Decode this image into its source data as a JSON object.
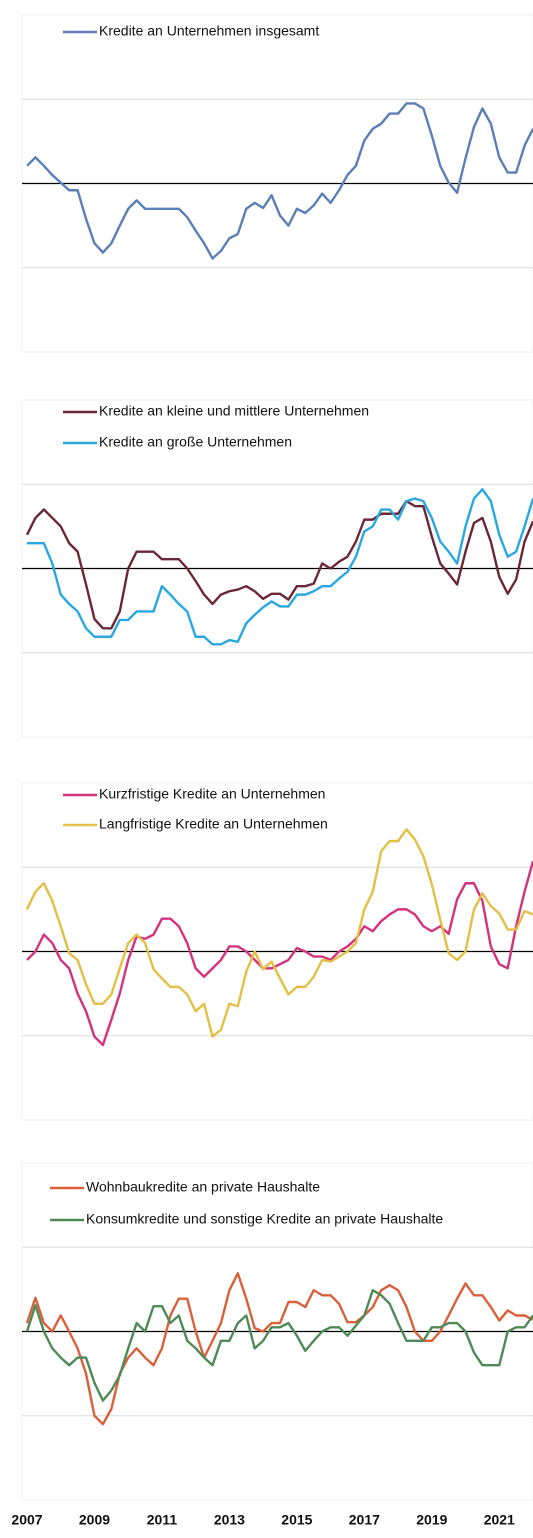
{
  "chart_data": [
    {
      "type": "line",
      "xlim": [
        2007,
        2022
      ],
      "ylim": [
        -2,
        2
      ],
      "yticks": [
        -1,
        0,
        1
      ],
      "grid": true,
      "x": [
        2007,
        2007.25,
        2007.5,
        2007.75,
        2008,
        2008.25,
        2008.5,
        2008.75,
        2009,
        2009.25,
        2009.5,
        2009.75,
        2010,
        2010.25,
        2010.5,
        2010.75,
        2011,
        2011.25,
        2011.5,
        2011.75,
        2012,
        2012.25,
        2012.5,
        2012.75,
        2013,
        2013.25,
        2013.5,
        2013.75,
        2014,
        2014.25,
        2014.5,
        2014.75,
        2015,
        2015.25,
        2015.5,
        2015.75,
        2016,
        2016.25,
        2016.5,
        2016.75,
        2017,
        2017.25,
        2017.5,
        2017.75,
        2018,
        2018.25,
        2018.5,
        2018.75,
        2019,
        2019.25,
        2019.5,
        2019.75,
        2020,
        2020.25,
        2020.5,
        2020.75,
        2021,
        2021.25,
        2021.5,
        2021.75,
        2022
      ],
      "series": [
        {
          "name": "Kredite an Unternehmen insgesamt",
          "color": "#5b7fb5",
          "values": [
            0.21,
            0.31,
            0.21,
            0.1,
            0.01,
            -0.08,
            -0.08,
            -0.42,
            -0.71,
            -0.82,
            -0.71,
            -0.5,
            -0.3,
            -0.2,
            -0.3,
            -0.3,
            -0.3,
            -0.3,
            -0.3,
            -0.4,
            -0.56,
            -0.71,
            -0.89,
            -0.8,
            -0.65,
            -0.6,
            -0.3,
            -0.23,
            -0.29,
            -0.14,
            -0.38,
            -0.5,
            -0.3,
            -0.35,
            -0.26,
            -0.12,
            -0.23,
            -0.08,
            0.1,
            0.21,
            0.51,
            0.65,
            0.71,
            0.83,
            0.83,
            0.95,
            0.95,
            0.89,
            0.57,
            0.21,
            0.01,
            -0.11,
            0.3,
            0.67,
            0.89,
            0.71,
            0.31,
            0.13,
            0.13,
            0.45,
            0.65
          ]
        }
      ]
    },
    {
      "type": "line",
      "xlim": [
        2007,
        2022
      ],
      "ylim": [
        -2,
        2
      ],
      "yticks": [
        -1,
        0,
        1
      ],
      "grid": true,
      "x": [
        2007,
        2007.25,
        2007.5,
        2007.75,
        2008,
        2008.25,
        2008.5,
        2008.75,
        2009,
        2009.25,
        2009.5,
        2009.75,
        2010,
        2010.25,
        2010.5,
        2010.75,
        2011,
        2011.25,
        2011.5,
        2011.75,
        2012,
        2012.25,
        2012.5,
        2012.75,
        2013,
        2013.25,
        2013.5,
        2013.75,
        2014,
        2014.25,
        2014.5,
        2014.75,
        2015,
        2015.25,
        2015.5,
        2015.75,
        2016,
        2016.25,
        2016.5,
        2016.75,
        2017,
        2017.25,
        2017.5,
        2017.75,
        2018,
        2018.25,
        2018.5,
        2018.75,
        2019,
        2019.25,
        2019.5,
        2019.75,
        2020,
        2020.25,
        2020.5,
        2020.75,
        2021,
        2021.25,
        2021.5,
        2021.75,
        2022
      ],
      "series": [
        {
          "name": "Kredite an kleine und mittlere Unternehmen",
          "color": "#6b2737",
          "values": [
            0.4,
            0.6,
            0.7,
            0.6,
            0.5,
            0.3,
            0.2,
            -0.19,
            -0.6,
            -0.71,
            -0.71,
            -0.51,
            0,
            0.2,
            0.2,
            0.2,
            0.11,
            0.11,
            0.11,
            0,
            -0.15,
            -0.31,
            -0.42,
            -0.31,
            -0.27,
            -0.25,
            -0.21,
            -0.27,
            -0.36,
            -0.3,
            -0.3,
            -0.37,
            -0.21,
            -0.21,
            -0.18,
            0.06,
            0,
            0.08,
            0.14,
            0.32,
            0.58,
            0.58,
            0.65,
            0.65,
            0.65,
            0.8,
            0.74,
            0.74,
            0.38,
            0.06,
            -0.06,
            -0.19,
            0.2,
            0.54,
            0.6,
            0.32,
            -0.1,
            -0.3,
            -0.13,
            0.32,
            0.56
          ]
        },
        {
          "name": "Kredite an große Unternehmen",
          "color": "#29a8e0",
          "values": [
            0.3,
            0.3,
            0.3,
            0.06,
            -0.31,
            -0.42,
            -0.51,
            -0.71,
            -0.81,
            -0.81,
            -0.81,
            -0.61,
            -0.61,
            -0.51,
            -0.51,
            -0.51,
            -0.21,
            -0.31,
            -0.42,
            -0.51,
            -0.81,
            -0.81,
            -0.9,
            -0.9,
            -0.85,
            -0.87,
            -0.65,
            -0.55,
            -0.46,
            -0.39,
            -0.45,
            -0.45,
            -0.31,
            -0.31,
            -0.27,
            -0.21,
            -0.21,
            -0.12,
            -0.04,
            0.14,
            0.44,
            0.5,
            0.7,
            0.7,
            0.58,
            0.8,
            0.83,
            0.8,
            0.6,
            0.32,
            0.2,
            0.06,
            0.5,
            0.83,
            0.94,
            0.8,
            0.4,
            0.14,
            0.2,
            0.5,
            0.83
          ]
        }
      ]
    },
    {
      "type": "line",
      "xlim": [
        2007,
        2022
      ],
      "ylim": [
        -2,
        2
      ],
      "yticks": [
        -1,
        0,
        1
      ],
      "grid": true,
      "x": [
        2007,
        2007.25,
        2007.5,
        2007.75,
        2008,
        2008.25,
        2008.5,
        2008.75,
        2009,
        2009.25,
        2009.5,
        2009.75,
        2010,
        2010.25,
        2010.5,
        2010.75,
        2011,
        2011.25,
        2011.5,
        2011.75,
        2012,
        2012.25,
        2012.5,
        2012.75,
        2013,
        2013.25,
        2013.5,
        2013.75,
        2014,
        2014.25,
        2014.5,
        2014.75,
        2015,
        2015.25,
        2015.5,
        2015.75,
        2016,
        2016.25,
        2016.5,
        2016.75,
        2017,
        2017.25,
        2017.5,
        2017.75,
        2018,
        2018.25,
        2018.5,
        2018.75,
        2019,
        2019.25,
        2019.5,
        2019.75,
        2020,
        2020.25,
        2020.5,
        2020.75,
        2021,
        2021.25,
        2021.5,
        2021.75,
        2022
      ],
      "series": [
        {
          "name": "Kurzfristige Kredite an Unternehmen",
          "color": "#d4317f",
          "values": [
            -0.1,
            0,
            0.2,
            0.1,
            -0.1,
            -0.2,
            -0.5,
            -0.71,
            -1.01,
            -1.11,
            -0.81,
            -0.5,
            -0.1,
            0.18,
            0.15,
            0.2,
            0.39,
            0.39,
            0.3,
            0.1,
            -0.2,
            -0.3,
            -0.2,
            -0.1,
            0.06,
            0.06,
            0,
            -0.1,
            -0.2,
            -0.2,
            -0.15,
            -0.1,
            0.04,
            0,
            -0.06,
            -0.06,
            -0.1,
            0,
            0.06,
            0.15,
            0.3,
            0.24,
            0.36,
            0.44,
            0.5,
            0.5,
            0.44,
            0.3,
            0.24,
            0.3,
            0.21,
            0.62,
            0.81,
            0.81,
            0.6,
            0.06,
            -0.15,
            -0.2,
            0.3,
            0.71,
            1.07
          ]
        },
        {
          "name": "Langfristige Kredite an Unternehmen",
          "color": "#e3bf45",
          "values": [
            0.5,
            0.71,
            0.81,
            0.6,
            0.3,
            -0.02,
            -0.1,
            -0.39,
            -0.62,
            -0.62,
            -0.51,
            -0.2,
            0.1,
            0.2,
            0.1,
            -0.21,
            -0.32,
            -0.42,
            -0.42,
            -0.51,
            -0.71,
            -0.62,
            -1.01,
            -0.93,
            -0.62,
            -0.65,
            -0.24,
            0,
            -0.21,
            -0.12,
            -0.32,
            -0.51,
            -0.42,
            -0.42,
            -0.3,
            -0.1,
            -0.12,
            -0.06,
            0,
            0.1,
            0.5,
            0.71,
            1.19,
            1.31,
            1.31,
            1.45,
            1.33,
            1.13,
            0.8,
            0.38,
            -0.02,
            -0.1,
            0,
            0.5,
            0.69,
            0.54,
            0.45,
            0.26,
            0.26,
            0.48,
            0.44
          ]
        }
      ]
    },
    {
      "type": "line",
      "xlim": [
        2007,
        2022
      ],
      "ylim": [
        -2,
        2
      ],
      "yticks": [
        -1,
        0,
        1
      ],
      "grid": true,
      "xticks": [
        2007,
        2009,
        2011,
        2013,
        2015,
        2017,
        2019,
        2021
      ],
      "x": [
        2007,
        2007.25,
        2007.5,
        2007.75,
        2008,
        2008.25,
        2008.5,
        2008.75,
        2009,
        2009.25,
        2009.5,
        2009.75,
        2010,
        2010.25,
        2010.5,
        2010.75,
        2011,
        2011.25,
        2011.5,
        2011.75,
        2012,
        2012.25,
        2012.5,
        2012.75,
        2013,
        2013.25,
        2013.5,
        2013.75,
        2014,
        2014.25,
        2014.5,
        2014.75,
        2015,
        2015.25,
        2015.5,
        2015.75,
        2016,
        2016.25,
        2016.5,
        2016.75,
        2017,
        2017.25,
        2017.5,
        2017.75,
        2018,
        2018.25,
        2018.5,
        2018.75,
        2019,
        2019.25,
        2019.5,
        2019.75,
        2020,
        2020.25,
        2020.5,
        2020.75,
        2021,
        2021.25,
        2021.5,
        2021.75,
        2022
      ],
      "series": [
        {
          "name": "Wohnbaukredite an private Haushalte",
          "color": "#d9603b",
          "values": [
            0.1,
            0.4,
            0.1,
            0,
            0.19,
            0,
            -0.2,
            -0.5,
            -1,
            -1.1,
            -0.92,
            -0.5,
            -0.31,
            -0.2,
            -0.31,
            -0.4,
            -0.2,
            0.19,
            0.39,
            0.39,
            0,
            -0.31,
            -0.11,
            0.1,
            0.49,
            0.69,
            0.39,
            0.04,
            0,
            0.1,
            0.1,
            0.35,
            0.35,
            0.29,
            0.49,
            0.43,
            0.43,
            0.33,
            0.11,
            0.11,
            0.19,
            0.29,
            0.49,
            0.55,
            0.49,
            0.29,
            0,
            -0.11,
            -0.11,
            0,
            0.19,
            0.39,
            0.57,
            0.43,
            0.43,
            0.29,
            0.13,
            0.25,
            0.19,
            0.19,
            0.14
          ]
        },
        {
          "name": "Konsumkredite und sonstige Kredite an private Haushalte",
          "color": "#4e8a55",
          "values": [
            0,
            0.31,
            0,
            -0.2,
            -0.31,
            -0.4,
            -0.31,
            -0.31,
            -0.61,
            -0.82,
            -0.7,
            -0.52,
            -0.2,
            0.1,
            0,
            0.3,
            0.3,
            0.1,
            0.19,
            -0.11,
            -0.2,
            -0.31,
            -0.4,
            -0.11,
            -0.11,
            0.1,
            0.19,
            -0.2,
            -0.11,
            0.05,
            0.05,
            0.1,
            -0.05,
            -0.23,
            -0.11,
            0,
            0.05,
            0.05,
            -0.05,
            0.07,
            0.19,
            0.49,
            0.43,
            0.33,
            0.1,
            -0.11,
            -0.11,
            -0.11,
            0.05,
            0.05,
            0.1,
            0.1,
            0,
            -0.25,
            -0.4,
            -0.4,
            -0.4,
            0,
            0.05,
            0.05,
            0.19
          ]
        }
      ]
    }
  ]
}
